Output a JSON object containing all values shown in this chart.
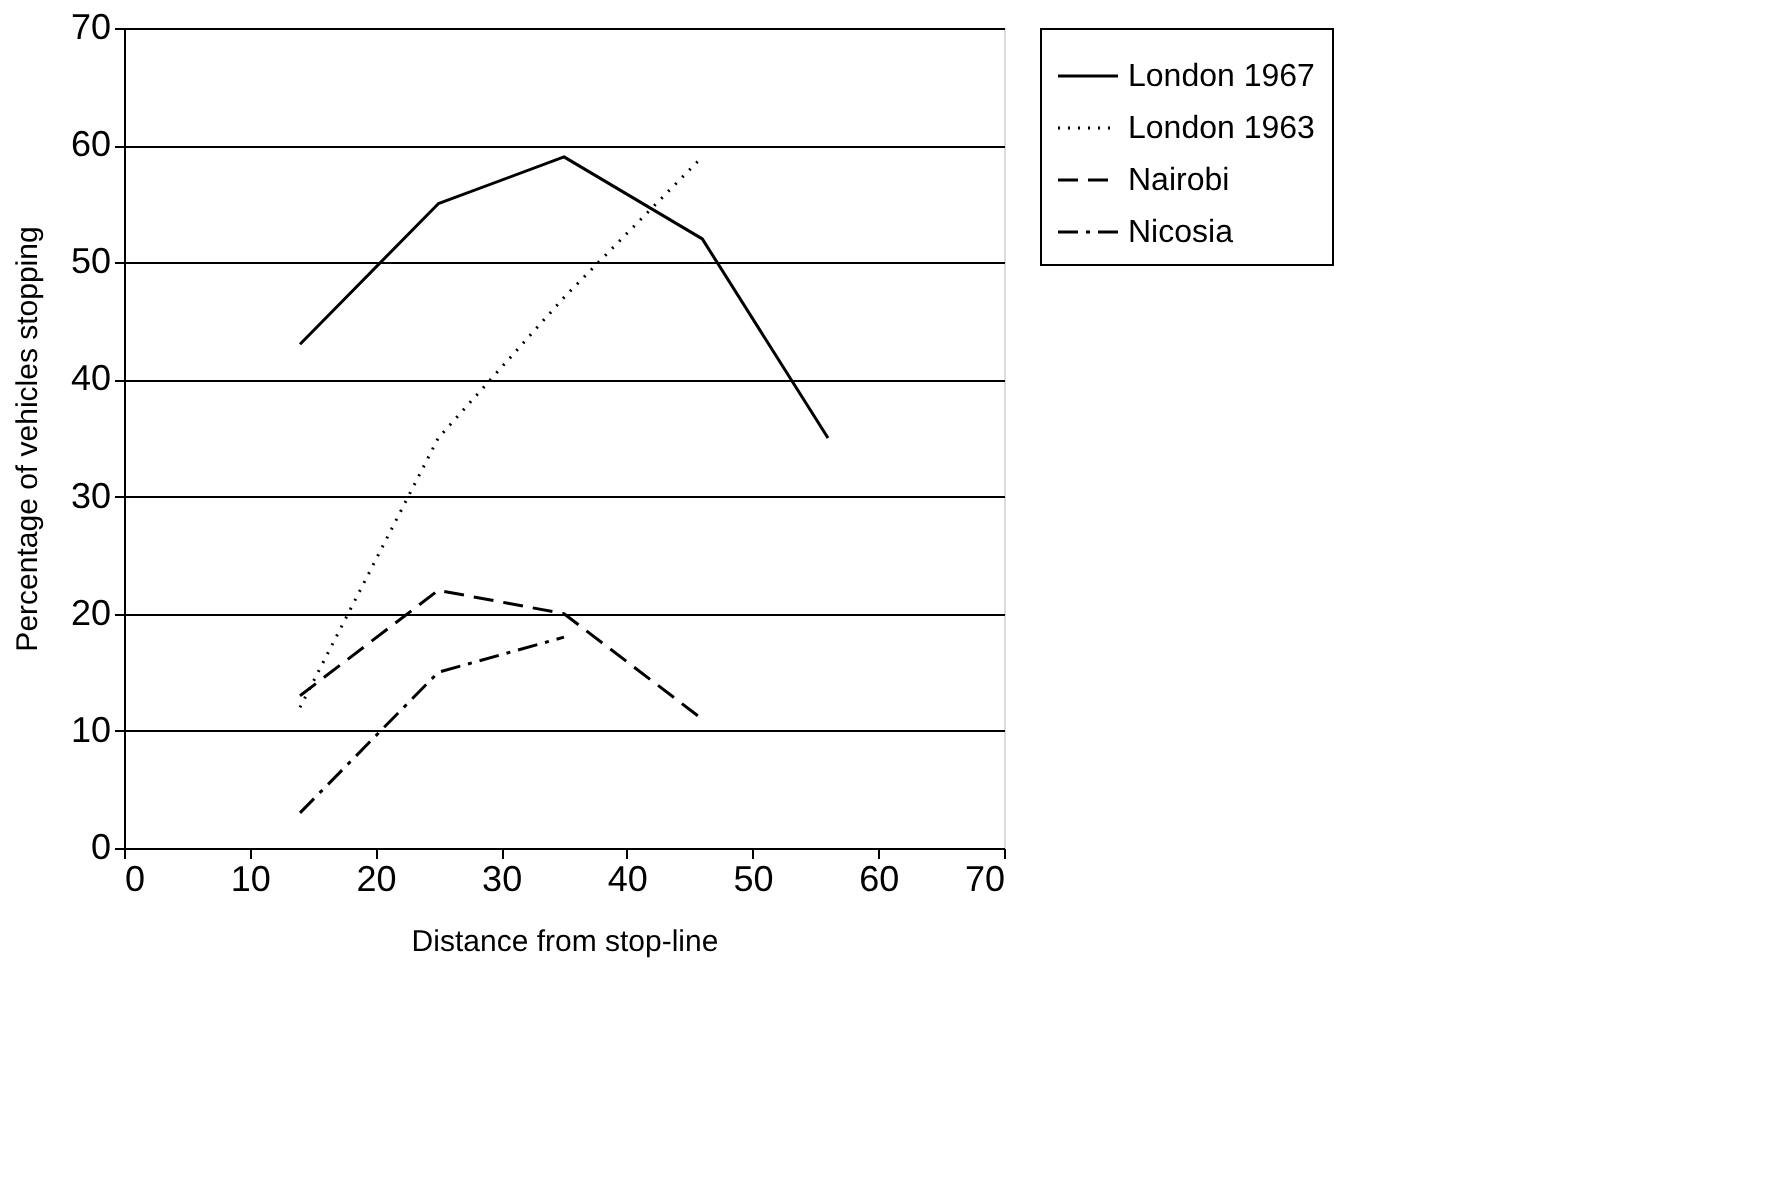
{
  "chart_data": {
    "type": "line",
    "xlabel": "Distance from stop-line",
    "ylabel": "Percentage of vehicles stopping",
    "xlim": [
      0,
      70
    ],
    "xticks": [
      0,
      10,
      20,
      30,
      40,
      50,
      60,
      70
    ],
    "ylim": [
      0,
      70
    ],
    "yticks": [
      0,
      10,
      20,
      30,
      40,
      50,
      60,
      70
    ],
    "grid": "y",
    "legend": "right",
    "marker": "none",
    "series": [
      {
        "name": "London 1967",
        "color": "#000000",
        "line_style": "solid",
        "x": [
          14,
          25,
          35,
          46,
          56
        ],
        "values": [
          43,
          55,
          59,
          52,
          35
        ]
      },
      {
        "name": "London 1963",
        "color": "#000000",
        "line_style": "dotted",
        "x": [
          14,
          25,
          35,
          46
        ],
        "values": [
          12,
          35,
          47,
          59
        ]
      },
      {
        "name": "Nairobi",
        "color": "#000000",
        "line_style": "dashed",
        "x": [
          14,
          25,
          35,
          46
        ],
        "values": [
          13,
          22,
          20,
          11
        ]
      },
      {
        "name": "Nicosia",
        "color": "#000000",
        "line_style": "dashdot",
        "x": [
          14,
          25,
          35
        ],
        "values": [
          3,
          15,
          18
        ]
      }
    ]
  }
}
